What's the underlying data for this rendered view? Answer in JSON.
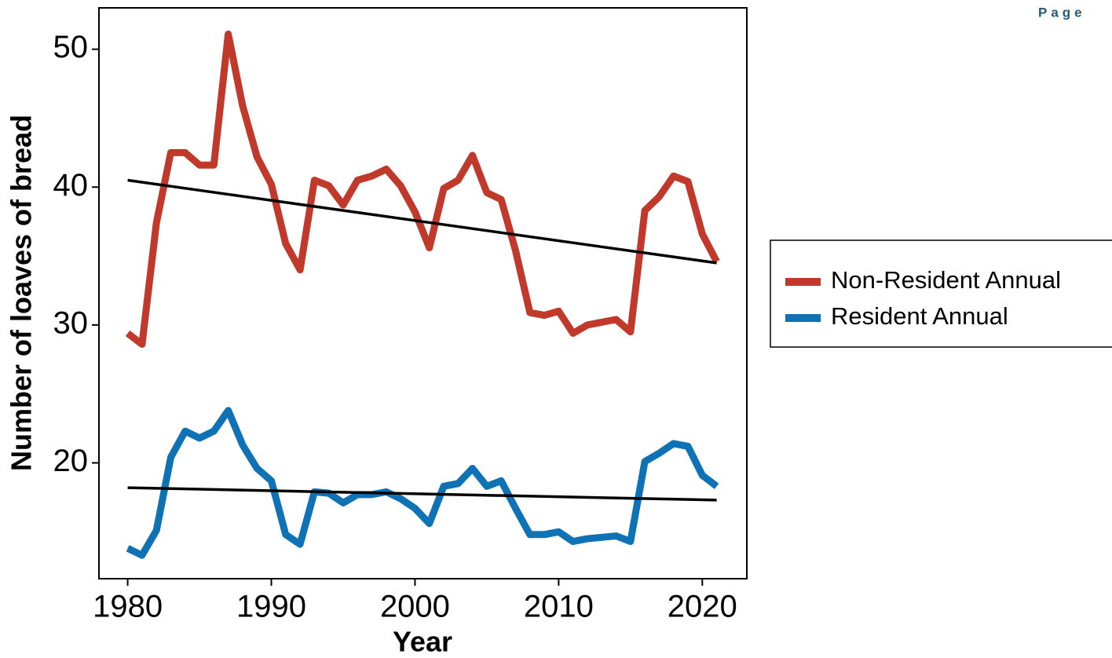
{
  "page_label": "Page",
  "chart_data": {
    "type": "line",
    "x_label": "Year",
    "y_label": "Number of loaves of bread",
    "x": [
      1980,
      1981,
      1982,
      1983,
      1984,
      1985,
      1986,
      1987,
      1988,
      1989,
      1990,
      1991,
      1992,
      1993,
      1994,
      1995,
      1996,
      1997,
      1998,
      1999,
      2000,
      2001,
      2002,
      2003,
      2004,
      2005,
      2006,
      2007,
      2008,
      2009,
      2010,
      2011,
      2012,
      2013,
      2014,
      2015,
      2016,
      2017,
      2018,
      2019,
      2020,
      2021
    ],
    "series": [
      {
        "name": "Non-Resident Annual",
        "color": "#c0392b",
        "values": [
          29.4,
          28.6,
          37.4,
          42.5,
          42.5,
          41.6,
          41.6,
          51.1,
          45.9,
          42.2,
          40.2,
          35.9,
          34.0,
          40.5,
          40.1,
          38.7,
          40.5,
          40.8,
          41.3,
          40.1,
          38.2,
          35.6,
          39.9,
          40.5,
          42.3,
          39.6,
          39.1,
          35.4,
          30.9,
          30.7,
          31.0,
          29.4,
          30.0,
          30.2,
          30.4,
          29.5,
          38.3,
          39.3,
          40.8,
          40.4,
          36.6,
          34.6
        ]
      },
      {
        "name": "Resident Annual",
        "color": "#0e72b5",
        "values": [
          13.8,
          13.3,
          15.1,
          20.4,
          22.3,
          21.8,
          22.3,
          23.8,
          21.3,
          19.6,
          18.7,
          14.8,
          14.1,
          17.9,
          17.8,
          17.1,
          17.7,
          17.7,
          17.9,
          17.4,
          16.7,
          15.6,
          18.3,
          18.5,
          19.6,
          18.3,
          18.7,
          16.7,
          14.8,
          14.8,
          15.0,
          14.3,
          14.5,
          14.6,
          14.7,
          14.3,
          20.1,
          20.7,
          21.4,
          21.2,
          19.1,
          18.3
        ]
      }
    ],
    "trend_lines": [
      {
        "color": "#000000",
        "x": [
          1980,
          2021
        ],
        "values": [
          40.5,
          34.5
        ]
      },
      {
        "color": "#000000",
        "x": [
          1980,
          2021
        ],
        "values": [
          18.2,
          17.3
        ]
      }
    ],
    "xlim": [
      1978,
      2023.1
    ],
    "xticks": [
      1980,
      1990,
      2000,
      2010,
      2020
    ],
    "ylim": [
      11.6,
      53.0
    ],
    "yticks": [
      20,
      30,
      40,
      50
    ]
  }
}
